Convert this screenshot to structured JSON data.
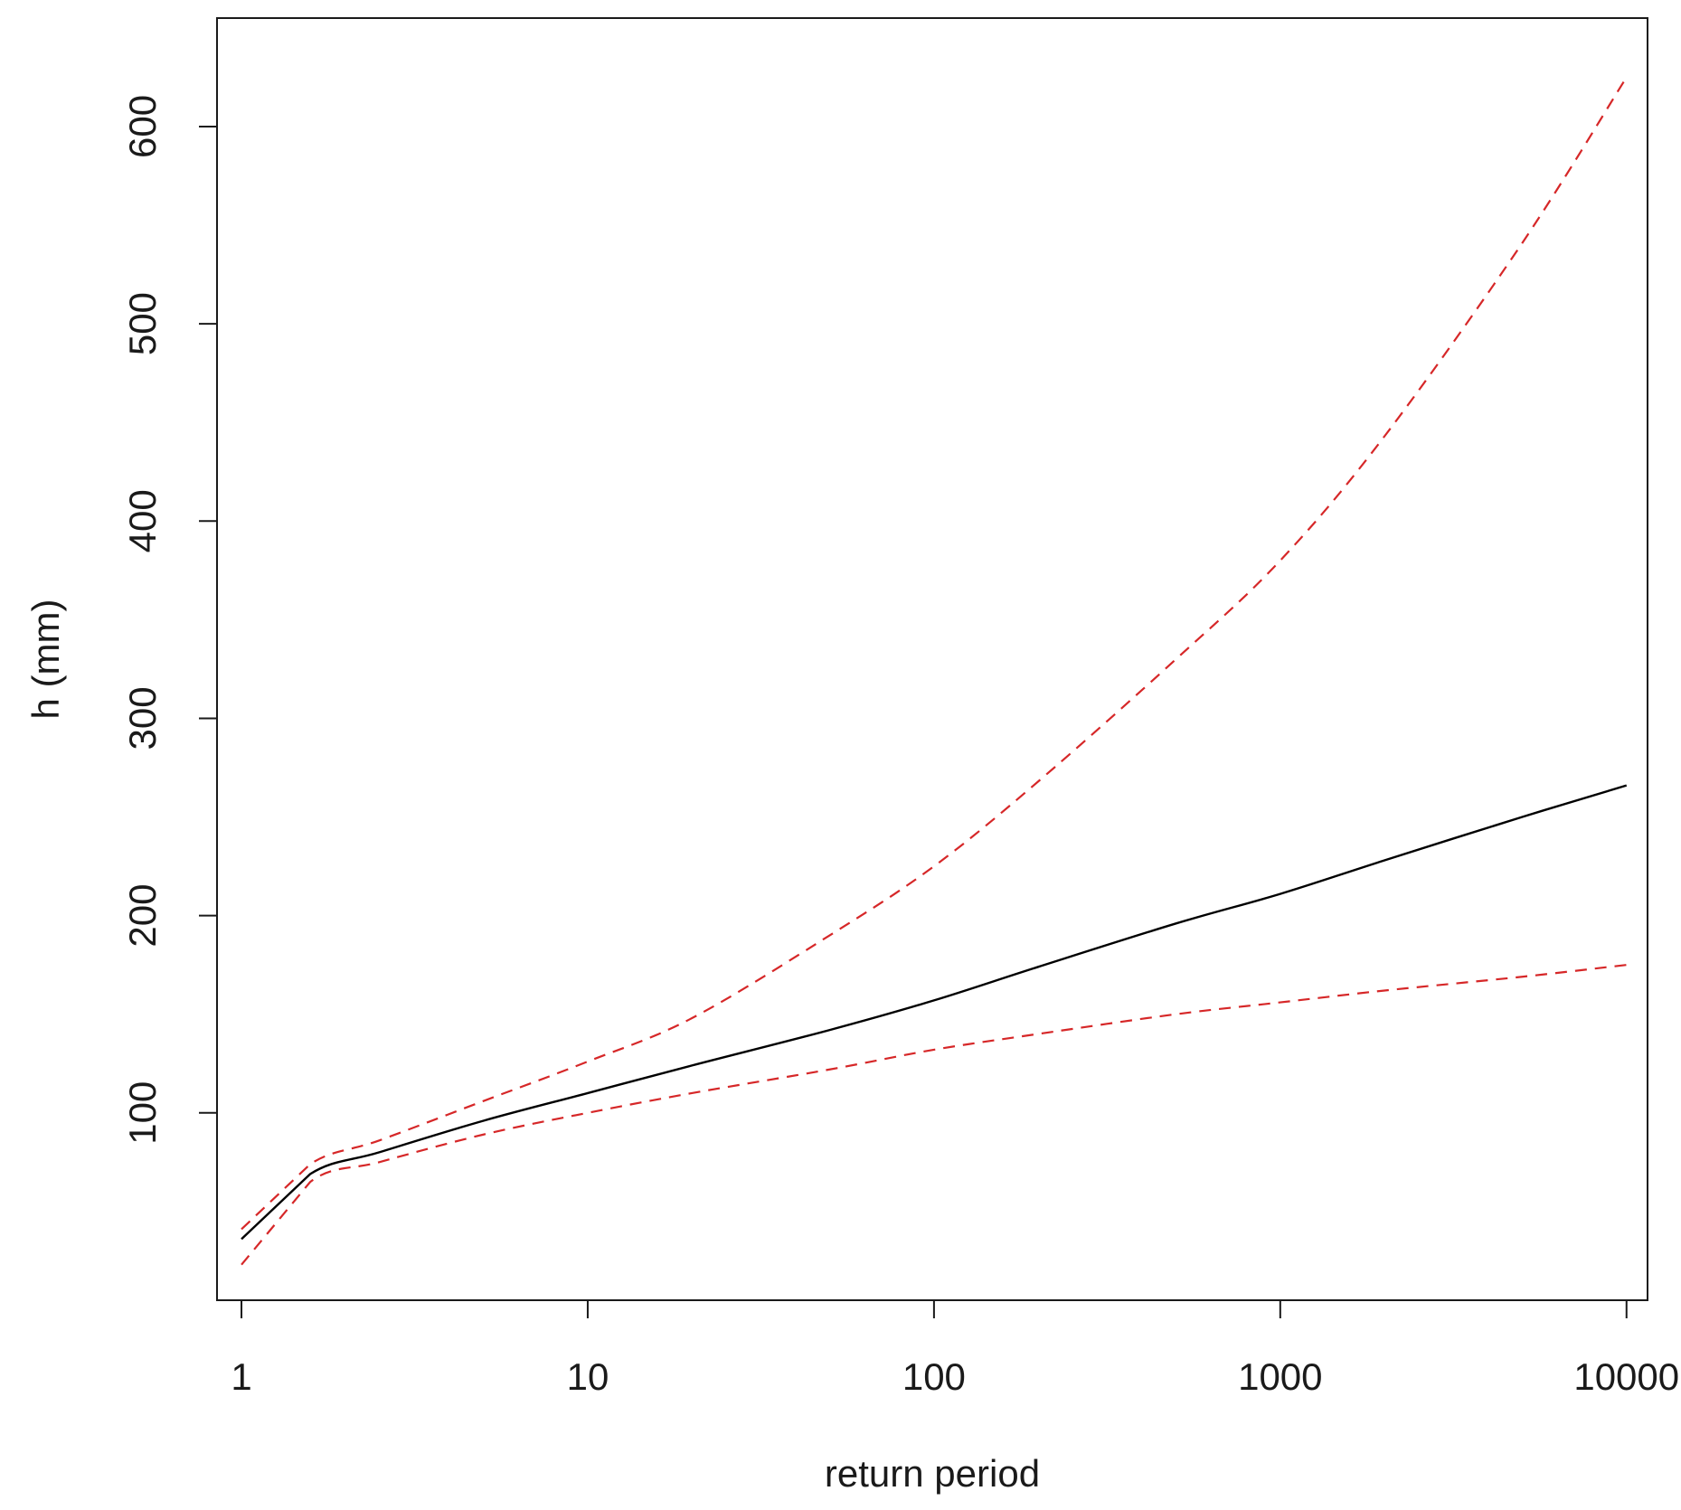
{
  "chart_data": {
    "type": "line",
    "title": "",
    "xlabel": "return period",
    "ylabel": "h (mm)",
    "x_scale": "log",
    "xlim": [
      0.85,
      11500
    ],
    "ylim": [
      5,
      655
    ],
    "x_ticks": [
      1,
      10,
      100,
      1000,
      10000
    ],
    "x_tick_labels": [
      "1",
      "10",
      "100",
      "1000",
      "10000"
    ],
    "y_ticks": [
      100,
      200,
      300,
      400,
      500,
      600
    ],
    "y_tick_labels": [
      "100",
      "200",
      "300",
      "400",
      "500",
      "600"
    ],
    "grid": false,
    "legend": "none",
    "series": [
      {
        "color": "#000000",
        "style": "solid",
        "x": [
          1,
          1.58,
          2.5,
          5,
          10,
          20,
          50,
          100,
          200,
          500,
          1000,
          2000,
          5000,
          10000
        ],
        "y": [
          36,
          69,
          80,
          96,
          110,
          124,
          142,
          157,
          174,
          196,
          211,
          228,
          250,
          266
        ]
      },
      {
        "color": "#d62728",
        "style": "dashed",
        "x": [
          1,
          1.58,
          2.5,
          5,
          10,
          20,
          50,
          100,
          200,
          500,
          1000,
          2000,
          5000,
          10000
        ],
        "y": [
          41,
          74,
          86,
          106,
          126,
          148,
          190,
          225,
          268,
          330,
          380,
          443,
          541,
          625
        ]
      },
      {
        "color": "#d62728",
        "style": "dashed",
        "x": [
          1,
          1.58,
          2.5,
          5,
          10,
          20,
          50,
          100,
          200,
          500,
          1000,
          2000,
          5000,
          10000
        ],
        "y": [
          23,
          65,
          75,
          89,
          100,
          110,
          122,
          132,
          140,
          150,
          156,
          162,
          169,
          175
        ]
      }
    ]
  }
}
